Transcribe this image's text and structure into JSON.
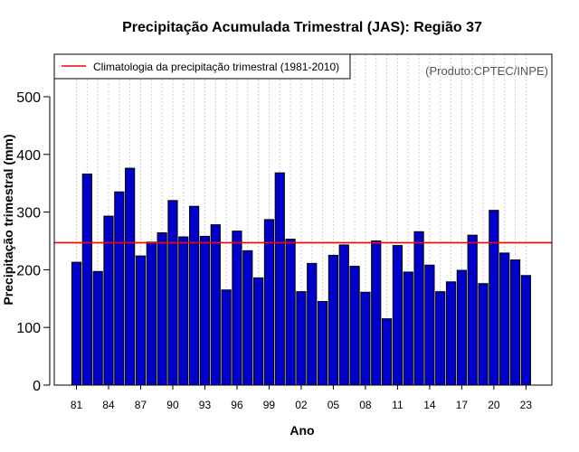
{
  "chart_data": {
    "type": "bar",
    "title": "Precipitação Acumulada Trimestral (JAS): Região 37",
    "xlabel": "Ano",
    "ylabel": "Precipitação trimestral (mm)",
    "credit": "(Produto:CPTEC/INPE)",
    "ylim": [
      0,
      560
    ],
    "yticks": [
      "0",
      "100",
      "200",
      "300",
      "400",
      "500"
    ],
    "ytick_values": [
      0,
      100,
      200,
      300,
      400,
      500
    ],
    "xtick_labels": [
      "81",
      "84",
      "87",
      "90",
      "93",
      "96",
      "99",
      "02",
      "05",
      "08",
      "11",
      "14",
      "17",
      "20",
      "23"
    ],
    "xtick_indices": [
      0,
      3,
      6,
      9,
      12,
      15,
      18,
      21,
      24,
      27,
      30,
      33,
      36,
      39,
      42
    ],
    "categories": [
      "1981",
      "1982",
      "1983",
      "1984",
      "1985",
      "1986",
      "1987",
      "1988",
      "1989",
      "1990",
      "1991",
      "1992",
      "1993",
      "1994",
      "1995",
      "1996",
      "1997",
      "1998",
      "1999",
      "2000",
      "2001",
      "2002",
      "2003",
      "2004",
      "2005",
      "2006",
      "2007",
      "2008",
      "2009",
      "2010",
      "2011",
      "2012",
      "2013",
      "2014",
      "2015",
      "2016",
      "2017",
      "2018",
      "2019",
      "2020",
      "2021",
      "2022",
      "2023"
    ],
    "values": [
      213,
      366,
      197,
      293,
      335,
      376,
      224,
      248,
      264,
      320,
      257,
      310,
      258,
      278,
      165,
      267,
      233,
      186,
      287,
      368,
      253,
      162,
      211,
      145,
      225,
      243,
      206,
      161,
      250,
      115,
      242,
      196,
      266,
      208,
      162,
      179,
      199,
      260,
      176,
      303,
      229,
      217,
      190
    ],
    "series_name": "Precipitação trimestral",
    "climatology": {
      "label": "Climatologia da precipitação trimestral (1981-2010)",
      "value": 247
    },
    "bar_color": "#0000cd",
    "climatology_color": "#ff0000",
    "grid_color": "#cfcfcf"
  }
}
